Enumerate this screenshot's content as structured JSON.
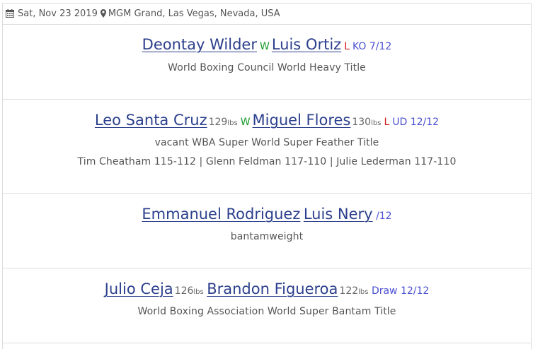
{
  "event": {
    "date": "Sat, Nov 23 2019",
    "location": "MGM Grand, Las Vegas, Nevada, USA",
    "icons": {
      "date": "calendar-icon",
      "location": "map-marker-icon"
    }
  },
  "colors": {
    "fighter_link": "#2b3f8c",
    "win": "#1a9a2a",
    "loss": "#d21a1a",
    "method": "#4a4fd0",
    "border": "#dcdcdc"
  },
  "bouts": [
    {
      "fighter1": {
        "name": "Deontay Wilder",
        "weight": "",
        "weight_unit": "",
        "result": "W"
      },
      "fighter2": {
        "name": "Luis Ortiz",
        "weight": "",
        "weight_unit": "",
        "result": "L"
      },
      "method": "KO 7/12",
      "title": "World Boxing Council World Heavy Title",
      "judges": ""
    },
    {
      "fighter1": {
        "name": "Leo Santa Cruz",
        "weight": "129",
        "weight_unit": "lbs",
        "result": "W"
      },
      "fighter2": {
        "name": "Miguel Flores",
        "weight": "130",
        "weight_unit": "lbs",
        "result": "L"
      },
      "method": "UD 12/12",
      "title": "vacant WBA Super World Super Feather Title",
      "judges": "Tim Cheatham 115-112 | Glenn Feldman 117-110 | Julie Lederman 117-110"
    },
    {
      "fighter1": {
        "name": "Emmanuel Rodriguez",
        "weight": "",
        "weight_unit": "",
        "result": ""
      },
      "fighter2": {
        "name": "Luis Nery",
        "weight": "",
        "weight_unit": "",
        "result": ""
      },
      "method": "/12",
      "title": "bantamweight",
      "judges": ""
    },
    {
      "fighter1": {
        "name": "Julio Ceja",
        "weight": "126",
        "weight_unit": "lbs",
        "result": ""
      },
      "fighter2": {
        "name": "Brandon Figueroa",
        "weight": "122",
        "weight_unit": "lbs",
        "result": ""
      },
      "method": "Draw 12/12",
      "title": "World Boxing Association World Super Bantam Title",
      "judges": ""
    }
  ]
}
